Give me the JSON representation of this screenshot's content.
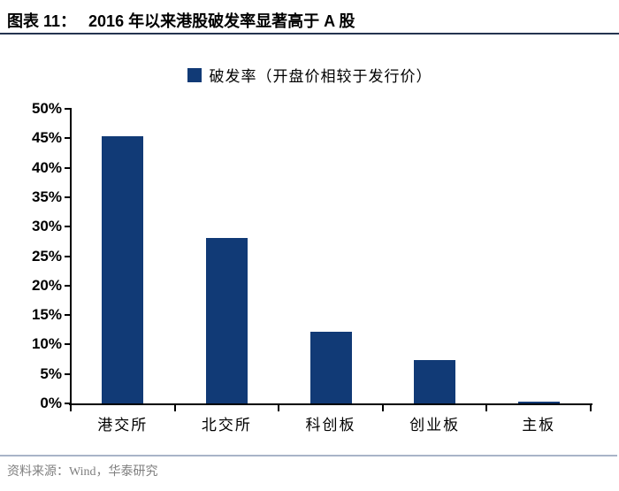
{
  "header": {
    "chart_no": "图表 11：",
    "title": "2016 年以来港股破发率显著高于 A 股"
  },
  "legend": {
    "label": "破发率（开盘价相较于发行价）"
  },
  "footer": {
    "source": "资料来源：Wind，华泰研究"
  },
  "colors": {
    "bar": "#113A76",
    "title_rule": "#253450",
    "footer_rule": "#A8B4C8",
    "footer_text": "#7F7F7F",
    "axis": "#000000"
  },
  "chart_data": {
    "type": "bar",
    "title": "破发率（开盘价相较于发行价）",
    "categories": [
      "港交所",
      "北交所",
      "科创板",
      "创业板",
      "主板"
    ],
    "values": [
      45.4,
      28.1,
      12.1,
      7.3,
      0.3
    ],
    "xlabel": "",
    "ylabel": "",
    "ylim": [
      0,
      50
    ],
    "y_tick_step": 5,
    "y_tick_labels": [
      "0%",
      "5%",
      "10%",
      "15%",
      "20%",
      "25%",
      "30%",
      "35%",
      "40%",
      "45%",
      "50%"
    ],
    "grid": false,
    "legend_position": "top-center",
    "bar_color": "#113A76"
  }
}
